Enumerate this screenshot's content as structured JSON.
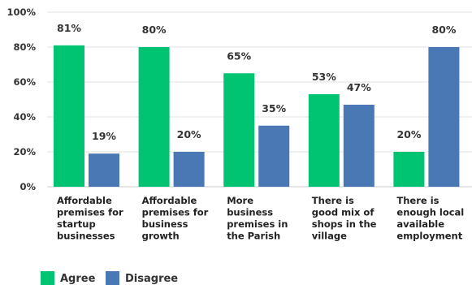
{
  "chart_data": {
    "type": "bar",
    "categories": [
      [
        "Affordable",
        "premises for",
        "startup",
        "businesses"
      ],
      [
        "Affordable",
        "premises for",
        "business",
        "growth"
      ],
      [
        "More",
        "business",
        "premises in",
        "the Parish"
      ],
      [
        "There is",
        "good mix of",
        "shops in the",
        "village"
      ],
      [
        "There is",
        "enough local",
        "available",
        "employment"
      ]
    ],
    "series": [
      {
        "name": "Agree",
        "color": "#00c471",
        "values": [
          81,
          80,
          65,
          53,
          20
        ]
      },
      {
        "name": "Disagree",
        "color": "#4a78b5",
        "values": [
          19,
          20,
          35,
          47,
          80
        ]
      }
    ],
    "ylim": [
      0,
      100
    ],
    "yticks": [
      0,
      20,
      40,
      60,
      80,
      100
    ],
    "ytick_suffix": "%",
    "value_suffix": "%",
    "grid": true,
    "legend_position": "bottom-left",
    "title": "",
    "xlabel": "",
    "ylabel": ""
  }
}
